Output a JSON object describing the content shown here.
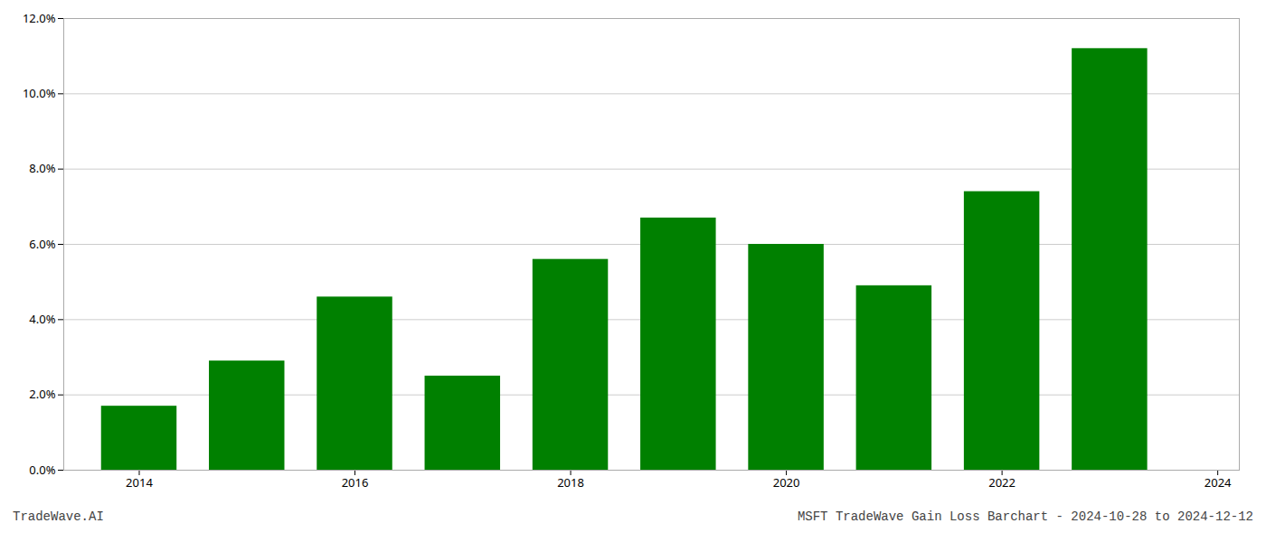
{
  "chart_data": {
    "type": "bar",
    "x": [
      2014,
      2015,
      2016,
      2017,
      2018,
      2019,
      2020,
      2021,
      2022,
      2023
    ],
    "values": [
      0.017,
      0.029,
      0.046,
      0.025,
      0.056,
      0.067,
      0.06,
      0.049,
      0.074,
      0.112
    ],
    "color": "#008000",
    "xlim": [
      2013.3,
      2024.2
    ],
    "xticks": [
      2014,
      2016,
      2018,
      2020,
      2022,
      2024
    ],
    "ylim": [
      0,
      0.12
    ],
    "yticks": [
      {
        "value": 0,
        "label": "0.0%"
      },
      {
        "value": 0.02,
        "label": "2.0%"
      },
      {
        "value": 0.04,
        "label": "4.0%"
      },
      {
        "value": 0.06,
        "label": "6.0%"
      },
      {
        "value": 0.08,
        "label": "8.0%"
      },
      {
        "value": 0.1,
        "label": "10.0%"
      },
      {
        "value": 0.12,
        "label": "12.0%"
      }
    ],
    "grid": true,
    "annotations": [
      "TradeWave.AI",
      "MSFT TradeWave Gain Loss Barchart - 2024-10-28 to 2024-12-12"
    ]
  }
}
